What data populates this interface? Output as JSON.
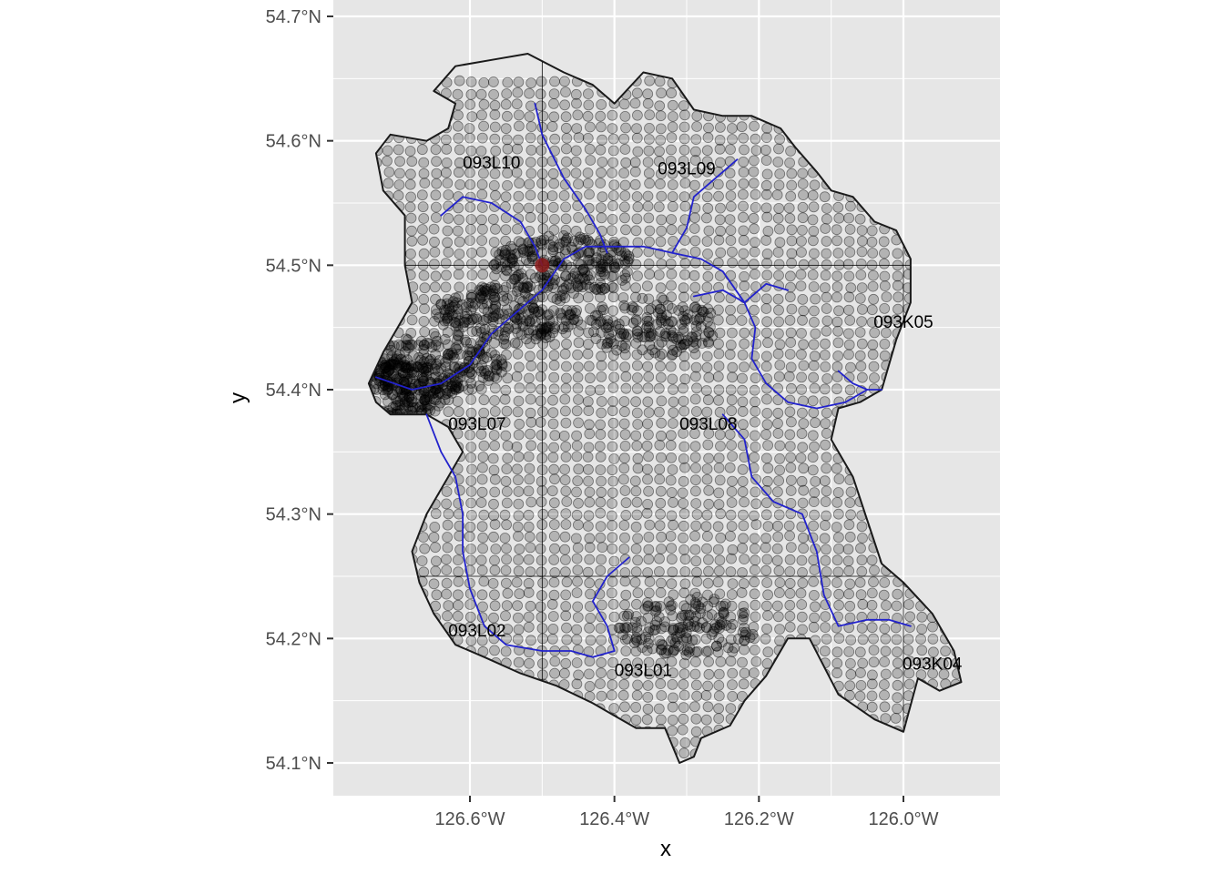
{
  "map": {
    "type": "map",
    "xlabel": "x",
    "ylabel": "y",
    "lon_range": [
      -126.77,
      -125.87
    ],
    "lat_range": [
      54.075,
      54.715
    ],
    "x_ticks": [
      {
        "value": -126.6,
        "label": "126.6°W"
      },
      {
        "value": -126.4,
        "label": "126.4°W"
      },
      {
        "value": -126.2,
        "label": "126.2°W"
      },
      {
        "value": -126.0,
        "label": "126.0°W"
      }
    ],
    "y_ticks": [
      {
        "value": 54.1,
        "label": "54.1°N"
      },
      {
        "value": 54.2,
        "label": "54.2°N"
      },
      {
        "value": 54.3,
        "label": "54.3°N"
      },
      {
        "value": 54.4,
        "label": "54.4°N"
      },
      {
        "value": 54.5,
        "label": "54.5°N"
      },
      {
        "value": 54.6,
        "label": "54.6°N"
      },
      {
        "value": 54.7,
        "label": "54.7°N"
      }
    ],
    "grid": true,
    "map_sheets": [
      {
        "label": "093L10",
        "lon": -126.57,
        "lat": 54.583
      },
      {
        "label": "093L09",
        "lon": -126.3,
        "lat": 54.578
      },
      {
        "label": "093K05",
        "lon": -126.0,
        "lat": 54.455
      },
      {
        "label": "093L07",
        "lon": -126.59,
        "lat": 54.373
      },
      {
        "label": "093L08",
        "lon": -126.27,
        "lat": 54.373
      },
      {
        "label": "093L02",
        "lon": -126.59,
        "lat": 54.207
      },
      {
        "label": "093L01",
        "lon": -126.36,
        "lat": 54.175
      },
      {
        "label": "093K04",
        "lon": -125.96,
        "lat": 54.18
      }
    ],
    "sheet_boundaries": {
      "lon": [
        -126.5,
        -126.0
      ],
      "lat": [
        54.25,
        54.5
      ]
    },
    "highlight_point": {
      "lon": -126.5,
      "lat": 54.5
    },
    "colors": {
      "panel": "#e6e6e6",
      "grid": "#ffffff",
      "points": "#000000",
      "boundary": "#1a1a1a",
      "river": "#2222cc",
      "highlight": "#8b1a1a"
    },
    "boundary_polygon": [
      [
        -126.65,
        54.64
      ],
      [
        -126.62,
        54.66
      ],
      [
        -126.57,
        54.665
      ],
      [
        -126.52,
        54.67
      ],
      [
        -126.47,
        54.655
      ],
      [
        -126.43,
        54.645
      ],
      [
        -126.4,
        54.63
      ],
      [
        -126.36,
        54.655
      ],
      [
        -126.32,
        54.65
      ],
      [
        -126.29,
        54.625
      ],
      [
        -126.25,
        54.62
      ],
      [
        -126.21,
        54.62
      ],
      [
        -126.17,
        54.61
      ],
      [
        -126.15,
        54.595
      ],
      [
        -126.12,
        54.575
      ],
      [
        -126.1,
        54.56
      ],
      [
        -126.07,
        54.555
      ],
      [
        -126.04,
        54.535
      ],
      [
        -126.01,
        54.528
      ],
      [
        -125.99,
        54.505
      ],
      [
        -125.99,
        54.47
      ],
      [
        -126.01,
        54.44
      ],
      [
        -126.03,
        54.4
      ],
      [
        -126.06,
        54.39
      ],
      [
        -126.09,
        54.385
      ],
      [
        -126.1,
        54.36
      ],
      [
        -126.07,
        54.33
      ],
      [
        -126.05,
        54.295
      ],
      [
        -126.03,
        54.26
      ],
      [
        -126.0,
        54.245
      ],
      [
        -125.96,
        54.22
      ],
      [
        -125.93,
        54.19
      ],
      [
        -125.92,
        54.165
      ],
      [
        -125.95,
        54.158
      ],
      [
        -125.98,
        54.168
      ],
      [
        -126.0,
        54.125
      ],
      [
        -126.04,
        54.135
      ],
      [
        -126.09,
        54.155
      ],
      [
        -126.13,
        54.2
      ],
      [
        -126.16,
        54.2
      ],
      [
        -126.19,
        54.17
      ],
      [
        -126.22,
        54.15
      ],
      [
        -126.24,
        54.13
      ],
      [
        -126.28,
        54.12
      ],
      [
        -126.29,
        54.105
      ],
      [
        -126.31,
        54.1
      ],
      [
        -126.33,
        54.128
      ],
      [
        -126.37,
        54.128
      ],
      [
        -126.4,
        54.138
      ],
      [
        -126.43,
        54.148
      ],
      [
        -126.48,
        54.162
      ],
      [
        -126.53,
        54.172
      ],
      [
        -126.58,
        54.185
      ],
      [
        -126.62,
        54.195
      ],
      [
        -126.65,
        54.22
      ],
      [
        -126.67,
        54.245
      ],
      [
        -126.68,
        54.27
      ],
      [
        -126.66,
        54.3
      ],
      [
        -126.63,
        54.33
      ],
      [
        -126.61,
        54.35
      ],
      [
        -126.63,
        54.37
      ],
      [
        -126.66,
        54.38
      ],
      [
        -126.71,
        54.38
      ],
      [
        -126.73,
        54.39
      ],
      [
        -126.74,
        54.405
      ],
      [
        -126.72,
        54.43
      ],
      [
        -126.7,
        54.45
      ],
      [
        -126.68,
        54.47
      ],
      [
        -126.69,
        54.5
      ],
      [
        -126.69,
        54.54
      ],
      [
        -126.72,
        54.56
      ],
      [
        -126.73,
        54.59
      ],
      [
        -126.71,
        54.605
      ],
      [
        -126.66,
        54.6
      ],
      [
        -126.63,
        54.61
      ],
      [
        -126.62,
        54.63
      ]
    ],
    "rivers": [
      [
        [
          -126.73,
          54.41
        ],
        [
          -126.68,
          54.4
        ],
        [
          -126.64,
          54.405
        ],
        [
          -126.6,
          54.42
        ],
        [
          -126.57,
          54.445
        ],
        [
          -126.53,
          54.465
        ],
        [
          -126.5,
          54.48
        ],
        [
          -126.47,
          54.505
        ],
        [
          -126.44,
          54.515
        ],
        [
          -126.4,
          54.515
        ],
        [
          -126.36,
          54.515
        ],
        [
          -126.32,
          54.51
        ],
        [
          -126.28,
          54.505
        ],
        [
          -126.25,
          54.495
        ],
        [
          -126.22,
          54.47
        ],
        [
          -126.205,
          54.45
        ],
        [
          -126.21,
          54.425
        ],
        [
          -126.19,
          54.405
        ],
        [
          -126.16,
          54.39
        ],
        [
          -126.12,
          54.385
        ],
        [
          -126.08,
          54.39
        ],
        [
          -126.05,
          54.4
        ],
        [
          -126.03,
          54.4
        ]
      ],
      [
        [
          -126.66,
          54.38
        ],
        [
          -126.64,
          54.35
        ],
        [
          -126.62,
          54.33
        ],
        [
          -126.61,
          54.3
        ],
        [
          -126.61,
          54.27
        ],
        [
          -126.6,
          54.24
        ],
        [
          -126.58,
          54.21
        ],
        [
          -126.55,
          54.195
        ],
        [
          -126.5,
          54.19
        ],
        [
          -126.46,
          54.19
        ],
        [
          -126.43,
          54.185
        ],
        [
          -126.4,
          54.19
        ],
        [
          -126.41,
          54.21
        ],
        [
          -126.43,
          54.23
        ],
        [
          -126.41,
          54.25
        ],
        [
          -126.38,
          54.265
        ]
      ],
      [
        [
          -126.51,
          54.63
        ],
        [
          -126.5,
          54.605
        ],
        [
          -126.47,
          54.57
        ],
        [
          -126.44,
          54.545
        ],
        [
          -126.42,
          54.525
        ],
        [
          -126.41,
          54.51
        ]
      ],
      [
        [
          -126.64,
          54.54
        ],
        [
          -126.61,
          54.555
        ],
        [
          -126.57,
          54.55
        ],
        [
          -126.53,
          54.535
        ],
        [
          -126.51,
          54.515
        ],
        [
          -126.5,
          54.5
        ]
      ],
      [
        [
          -126.23,
          54.585
        ],
        [
          -126.26,
          54.57
        ],
        [
          -126.29,
          54.555
        ],
        [
          -126.3,
          54.53
        ],
        [
          -126.32,
          54.51
        ]
      ],
      [
        [
          -126.25,
          54.38
        ],
        [
          -126.22,
          54.36
        ],
        [
          -126.21,
          54.33
        ],
        [
          -126.18,
          54.31
        ],
        [
          -126.14,
          54.3
        ],
        [
          -126.12,
          54.27
        ],
        [
          -126.11,
          54.235
        ],
        [
          -126.09,
          54.21
        ],
        [
          -126.05,
          54.215
        ],
        [
          -126.02,
          54.215
        ],
        [
          -125.99,
          54.21
        ]
      ],
      [
        [
          -126.29,
          54.475
        ],
        [
          -126.25,
          54.48
        ],
        [
          -126.22,
          54.47
        ],
        [
          -126.19,
          54.485
        ],
        [
          -126.16,
          54.48
        ]
      ],
      [
        [
          -126.09,
          54.415
        ],
        [
          -126.07,
          54.405
        ],
        [
          -126.05,
          54.4
        ]
      ]
    ],
    "point_density": [
      {
        "lon": -126.72,
        "lat": 54.4,
        "weight": 5
      },
      {
        "lon": -126.65,
        "lat": 54.42,
        "weight": 3
      },
      {
        "lon": -126.55,
        "lat": 54.46,
        "weight": 3
      },
      {
        "lon": -126.47,
        "lat": 54.5,
        "weight": 3
      },
      {
        "lon": -126.35,
        "lat": 54.45,
        "weight": 2
      },
      {
        "lon": -126.3,
        "lat": 54.21,
        "weight": 2
      }
    ]
  }
}
